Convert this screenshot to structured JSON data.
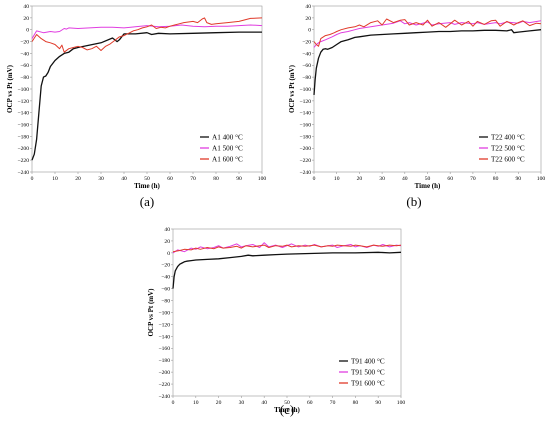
{
  "chart_data": [
    {
      "type": "line",
      "caption": "(a)",
      "xlabel": "Time (h)",
      "ylabel": "OCP vs Pt (mV)",
      "xlim": [
        0,
        100
      ],
      "ylim": [
        -240,
        40
      ],
      "xticks": [
        0,
        10,
        20,
        30,
        40,
        50,
        60,
        70,
        80,
        90,
        100
      ],
      "yticks": [
        -240,
        -220,
        -200,
        -180,
        -160,
        -140,
        -120,
        -100,
        -80,
        -60,
        -40,
        -20,
        0,
        20,
        40
      ],
      "grid": false,
      "legend": "bottom-right",
      "series": [
        {
          "name": "A1 400 °C",
          "color": "#111111",
          "x": [
            0,
            1,
            2,
            3,
            4,
            5,
            6,
            7,
            8,
            10,
            12,
            14,
            16,
            18,
            20,
            25,
            30,
            35,
            37,
            38,
            39,
            40,
            45,
            50,
            52,
            55,
            60,
            70,
            80,
            90,
            100
          ],
          "y": [
            -220,
            -210,
            -185,
            -140,
            -95,
            -80,
            -78,
            -72,
            -62,
            -52,
            -45,
            -40,
            -38,
            -32,
            -30,
            -26,
            -22,
            -14,
            -20,
            -17,
            -12,
            -7,
            -7,
            -5,
            -8,
            -6,
            -7,
            -6,
            -5,
            -4,
            -4
          ]
        },
        {
          "name": "A1 500 °C",
          "color": "#e03ee0",
          "x": [
            0,
            2,
            5,
            8,
            10,
            12,
            14,
            15,
            16,
            20,
            25,
            30,
            35,
            40,
            45,
            50,
            55,
            60,
            65,
            70,
            75,
            80,
            85,
            90,
            95,
            100
          ],
          "y": [
            -15,
            -2,
            -5,
            -3,
            -4,
            -3,
            2,
            1,
            3,
            2,
            3,
            4,
            4,
            3,
            5,
            7,
            5,
            6,
            8,
            6,
            5,
            6,
            6,
            7,
            8,
            7
          ]
        },
        {
          "name": "A1 600 °C",
          "color": "#e03a2a",
          "x": [
            0,
            2,
            4,
            6,
            8,
            10,
            12,
            13,
            14,
            16,
            18,
            20,
            22,
            24,
            26,
            28,
            30,
            32,
            34,
            36,
            38,
            40,
            42,
            44,
            46,
            48,
            50,
            52,
            54,
            56,
            58,
            60,
            62,
            64,
            66,
            68,
            70,
            72,
            74,
            75,
            76,
            78,
            80,
            85,
            90,
            95,
            100
          ],
          "y": [
            -20,
            -8,
            -15,
            -20,
            -22,
            -25,
            -32,
            -26,
            -38,
            -32,
            -30,
            -28,
            -30,
            -34,
            -32,
            -28,
            -35,
            -28,
            -24,
            -18,
            -12,
            -10,
            -6,
            -2,
            0,
            3,
            5,
            8,
            2,
            4,
            3,
            6,
            8,
            10,
            12,
            13,
            14,
            12,
            18,
            20,
            12,
            9,
            10,
            12,
            14,
            19,
            20
          ]
        }
      ]
    },
    {
      "type": "line",
      "caption": "(b)",
      "xlabel": "Time (h)",
      "ylabel": "OCP vs Pt (mV)",
      "xlim": [
        0,
        100
      ],
      "ylim": [
        -240,
        40
      ],
      "xticks": [
        0,
        10,
        20,
        30,
        40,
        50,
        60,
        70,
        80,
        90,
        100
      ],
      "yticks": [
        -240,
        -220,
        -200,
        -180,
        -160,
        -140,
        -120,
        -100,
        -80,
        -60,
        -40,
        -20,
        0,
        20,
        40
      ],
      "grid": false,
      "legend": "bottom-right",
      "series": [
        {
          "name": "T22 400 °C",
          "color": "#111111",
          "x": [
            0,
            0.5,
            1,
            2,
            3,
            4,
            5,
            6,
            8,
            10,
            12,
            15,
            18,
            20,
            25,
            30,
            35,
            40,
            45,
            50,
            55,
            60,
            65,
            70,
            75,
            80,
            85,
            87,
            88,
            90,
            95,
            100
          ],
          "y": [
            -110,
            -85,
            -65,
            -48,
            -38,
            -33,
            -32,
            -33,
            -30,
            -25,
            -20,
            -17,
            -13,
            -12,
            -9,
            -8,
            -7,
            -6,
            -5,
            -4,
            -3,
            -3,
            -2,
            -2,
            -1,
            -1,
            -2,
            0,
            -5,
            -4,
            -2,
            0
          ]
        },
        {
          "name": "T22 500 °C",
          "color": "#e03ee0",
          "x": [
            0,
            1,
            2,
            3,
            5,
            8,
            10,
            12,
            15,
            18,
            20,
            25,
            30,
            35,
            38,
            40,
            42,
            45,
            50,
            52,
            55,
            60,
            62,
            65,
            70,
            72,
            75,
            80,
            82,
            85,
            90,
            92,
            95,
            100
          ],
          "y": [
            -30,
            -25,
            -22,
            -20,
            -17,
            -12,
            -8,
            -5,
            -3,
            0,
            2,
            5,
            8,
            11,
            15,
            10,
            12,
            8,
            13,
            8,
            10,
            12,
            9,
            12,
            10,
            12,
            9,
            12,
            10,
            13,
            11,
            14,
            12,
            15
          ]
        },
        {
          "name": "T22 600 °C",
          "color": "#e03a2a",
          "x": [
            0,
            1,
            2,
            3,
            5,
            7,
            9,
            10,
            12,
            15,
            18,
            20,
            22,
            25,
            28,
            30,
            32,
            35,
            38,
            40,
            42,
            45,
            48,
            50,
            52,
            55,
            58,
            60,
            62,
            65,
            68,
            70,
            72,
            75,
            78,
            80,
            82,
            85,
            88,
            90,
            92,
            95,
            98,
            100
          ],
          "y": [
            -20,
            -25,
            -28,
            -15,
            -10,
            -8,
            -5,
            -3,
            0,
            3,
            5,
            8,
            5,
            12,
            15,
            8,
            18,
            12,
            16,
            17,
            8,
            12,
            8,
            16,
            6,
            12,
            4,
            10,
            16,
            8,
            14,
            6,
            14,
            9,
            15,
            16,
            6,
            14,
            8,
            12,
            15,
            7,
            11,
            10
          ]
        }
      ]
    },
    {
      "type": "line",
      "caption": "(c)",
      "xlabel": "Time (h)",
      "ylabel": "OCP vs Pt (mV)",
      "xlim": [
        0,
        100
      ],
      "ylim": [
        -240,
        40
      ],
      "xticks": [
        0,
        10,
        20,
        30,
        40,
        50,
        60,
        70,
        80,
        90,
        100
      ],
      "yticks": [
        -240,
        -220,
        -200,
        -180,
        -160,
        -140,
        -120,
        -100,
        -80,
        -60,
        -40,
        -20,
        0,
        20,
        40
      ],
      "grid": false,
      "legend": "bottom-right",
      "series": [
        {
          "name": "T91 400 °C",
          "color": "#111111",
          "x": [
            0,
            0.5,
            1,
            2,
            3,
            4,
            5,
            6,
            8,
            10,
            15,
            20,
            25,
            30,
            33,
            35,
            40,
            45,
            50,
            60,
            70,
            80,
            90,
            95,
            100
          ],
          "y": [
            -60,
            -40,
            -30,
            -23,
            -19,
            -17,
            -15,
            -14,
            -13,
            -12,
            -11,
            -10,
            -8,
            -6,
            -4,
            -5,
            -4,
            -3,
            -2,
            -1,
            0,
            0,
            1,
            0,
            1
          ]
        },
        {
          "name": "T91 500 °C",
          "color": "#e03ee0",
          "x": [
            0,
            2,
            5,
            8,
            10,
            12,
            15,
            18,
            20,
            22,
            25,
            28,
            30,
            32,
            35,
            38,
            40,
            42,
            45,
            48,
            50,
            52,
            55,
            58,
            60,
            62,
            65,
            68,
            70,
            72,
            75,
            78,
            80,
            82,
            85,
            88,
            90,
            92,
            95,
            98,
            100
          ],
          "y": [
            0,
            5,
            2,
            8,
            6,
            10,
            7,
            9,
            12,
            8,
            11,
            15,
            10,
            12,
            14,
            9,
            17,
            10,
            13,
            9,
            12,
            15,
            10,
            13,
            11,
            14,
            10,
            12,
            13,
            9,
            12,
            14,
            10,
            12,
            9,
            13,
            11,
            14,
            10,
            13,
            12
          ]
        },
        {
          "name": "T91 600 °C",
          "color": "#e03a2a",
          "x": [
            0,
            3,
            5,
            8,
            10,
            12,
            15,
            18,
            20,
            22,
            25,
            28,
            30,
            32,
            35,
            38,
            40,
            42,
            45,
            48,
            50,
            52,
            55,
            58,
            60,
            62,
            65,
            68,
            70,
            72,
            75,
            78,
            80,
            82,
            85,
            88,
            90,
            92,
            95,
            98,
            100
          ],
          "y": [
            2,
            4,
            6,
            5,
            8,
            6,
            9,
            7,
            10,
            8,
            9,
            11,
            8,
            12,
            10,
            12,
            13,
            9,
            12,
            11,
            13,
            10,
            12,
            11,
            12,
            13,
            10,
            12,
            11,
            13,
            12,
            11,
            13,
            12,
            10,
            13,
            12,
            11,
            13,
            12,
            13
          ]
        }
      ]
    }
  ]
}
